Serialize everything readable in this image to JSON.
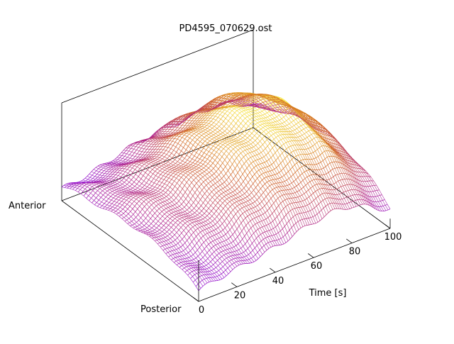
{
  "chart_data": {
    "type": "surface",
    "title": "PD4595_070629.ost",
    "xlabel": "Time [s]",
    "x_ticks": [
      "0",
      "20",
      "40",
      "60",
      "80",
      "100"
    ],
    "xlim": [
      0,
      100
    ],
    "depth_labels": [
      "Anterior",
      "Posterior"
    ],
    "grid": false,
    "surface_mesh": true,
    "colormap": [
      "#7e00ff",
      "#b0248a",
      "#d2691e",
      "#ffff40"
    ],
    "shape": {
      "x": [
        0,
        10,
        20,
        30,
        40,
        50,
        60,
        70,
        80,
        90,
        100
      ],
      "peak_height_along_time": [
        0.25,
        0.32,
        0.4,
        0.52,
        0.66,
        0.78,
        0.86,
        0.9,
        0.88,
        0.7,
        0.45
      ],
      "description_free": true
    }
  }
}
